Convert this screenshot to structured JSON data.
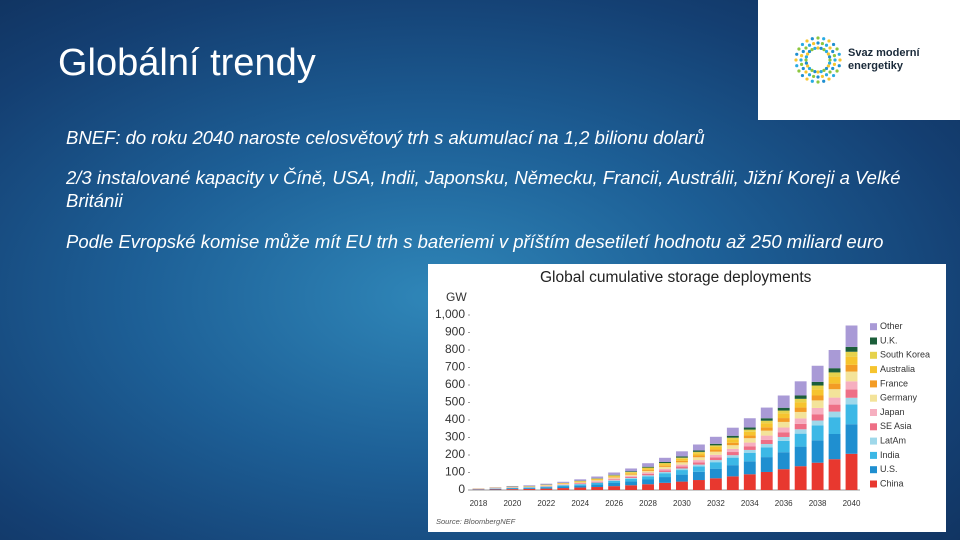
{
  "slide": {
    "title": "Globální trendy",
    "logo": {
      "lines": [
        "Svaz moderní",
        "energetiky"
      ]
    },
    "bullets": [
      "BNEF: do roku 2040 naroste celosvětový trh s akumulací na 1,2 bilionu dolarů",
      "2/3 instalované kapacity v Číně, USA, Indii, Japonsku, Německu, Francii, Austrálii, Jižní Koreji a Velké Británii",
      "Podle Evropské komise může mít EU trh s bateriemi v příštím desetiletí hodnotu až 250 miliard euro"
    ]
  },
  "chart_data": {
    "type": "stacked-bar",
    "title": "Global cumulative storage deployments",
    "y_label": "GW",
    "source": "Source: BloombergNEF",
    "categories": [
      "2018",
      null,
      "2020",
      null,
      "2022",
      null,
      "2024",
      null,
      "2026",
      null,
      "2028",
      null,
      "2030",
      null,
      "2032",
      null,
      "2034",
      null,
      "2036",
      null,
      "2038",
      null,
      "2040"
    ],
    "ylim": [
      0,
      1000
    ],
    "yticks": [
      0,
      100,
      200,
      300,
      400,
      500,
      600,
      700,
      800,
      900,
      {
        "value": 1000,
        "label": "1,000"
      }
    ],
    "series": [
      {
        "name": "China",
        "color": "#e8382f",
        "values": [
          2,
          3,
          5,
          6,
          8,
          11,
          14,
          17,
          22,
          27,
          33,
          41,
          48,
          57,
          67,
          78,
          90,
          103,
          119,
          136,
          156,
          176,
          207
        ]
      },
      {
        "name": "U.S.",
        "color": "#1f8fd0",
        "values": [
          2,
          3,
          4,
          5,
          7,
          9,
          11,
          14,
          18,
          22,
          27,
          33,
          40,
          47,
          55,
          64,
          74,
          85,
          97,
          112,
          128,
          144,
          169
        ]
      },
      {
        "name": "India",
        "color": "#3cb8e6",
        "values": [
          1,
          2,
          3,
          3,
          4,
          6,
          7,
          9,
          12,
          15,
          18,
          22,
          26,
          31,
          37,
          43,
          49,
          56,
          65,
          74,
          85,
          96,
          113
        ]
      },
      {
        "name": "LatAm",
        "color": "#9fd8ea",
        "values": [
          0,
          1,
          1,
          1,
          1,
          2,
          2,
          3,
          4,
          5,
          6,
          7,
          9,
          10,
          12,
          14,
          16,
          19,
          22,
          25,
          28,
          32,
          38
        ]
      },
      {
        "name": "SE Asia",
        "color": "#ee6f86",
        "values": [
          1,
          1,
          1,
          1,
          2,
          2,
          3,
          4,
          5,
          6,
          8,
          9,
          11,
          13,
          15,
          18,
          21,
          24,
          27,
          31,
          36,
          40,
          47
        ]
      },
      {
        "name": "Japan",
        "color": "#f6afc0",
        "values": [
          1,
          1,
          1,
          1,
          2,
          2,
          3,
          4,
          5,
          6,
          8,
          9,
          11,
          13,
          15,
          18,
          21,
          24,
          27,
          31,
          36,
          40,
          47
        ]
      },
      {
        "name": "Germany",
        "color": "#f3e39a",
        "values": [
          1,
          1,
          1,
          2,
          2,
          3,
          4,
          5,
          6,
          7,
          9,
          11,
          13,
          16,
          18,
          21,
          25,
          28,
          32,
          37,
          43,
          48,
          56
        ]
      },
      {
        "name": "France",
        "color": "#f39c25",
        "values": [
          0,
          1,
          1,
          1,
          1,
          2,
          2,
          3,
          4,
          5,
          6,
          7,
          9,
          10,
          12,
          14,
          16,
          19,
          22,
          25,
          28,
          32,
          38
        ]
      },
      {
        "name": "Australia",
        "color": "#f6c42e",
        "values": [
          1,
          1,
          1,
          1,
          2,
          2,
          3,
          4,
          5,
          6,
          8,
          9,
          11,
          13,
          15,
          18,
          21,
          24,
          27,
          31,
          36,
          40,
          47
        ]
      },
      {
        "name": "South Korea",
        "color": "#e6d24c",
        "values": [
          0,
          0,
          1,
          1,
          1,
          1,
          2,
          2,
          3,
          4,
          5,
          6,
          7,
          8,
          9,
          11,
          12,
          14,
          16,
          19,
          21,
          24,
          28
        ]
      },
      {
        "name": "U.K.",
        "color": "#1b5e3a",
        "values": [
          0,
          0,
          1,
          1,
          1,
          1,
          2,
          2,
          3,
          4,
          5,
          6,
          7,
          8,
          9,
          11,
          12,
          14,
          16,
          19,
          21,
          24,
          28
        ]
      },
      {
        "name": "Other",
        "color": "#a99ad6",
        "values": [
          1,
          2,
          3,
          4,
          5,
          6,
          8,
          10,
          13,
          16,
          20,
          24,
          29,
          34,
          40,
          46,
          53,
          61,
          70,
          81,
          92,
          104,
          122
        ]
      }
    ]
  }
}
